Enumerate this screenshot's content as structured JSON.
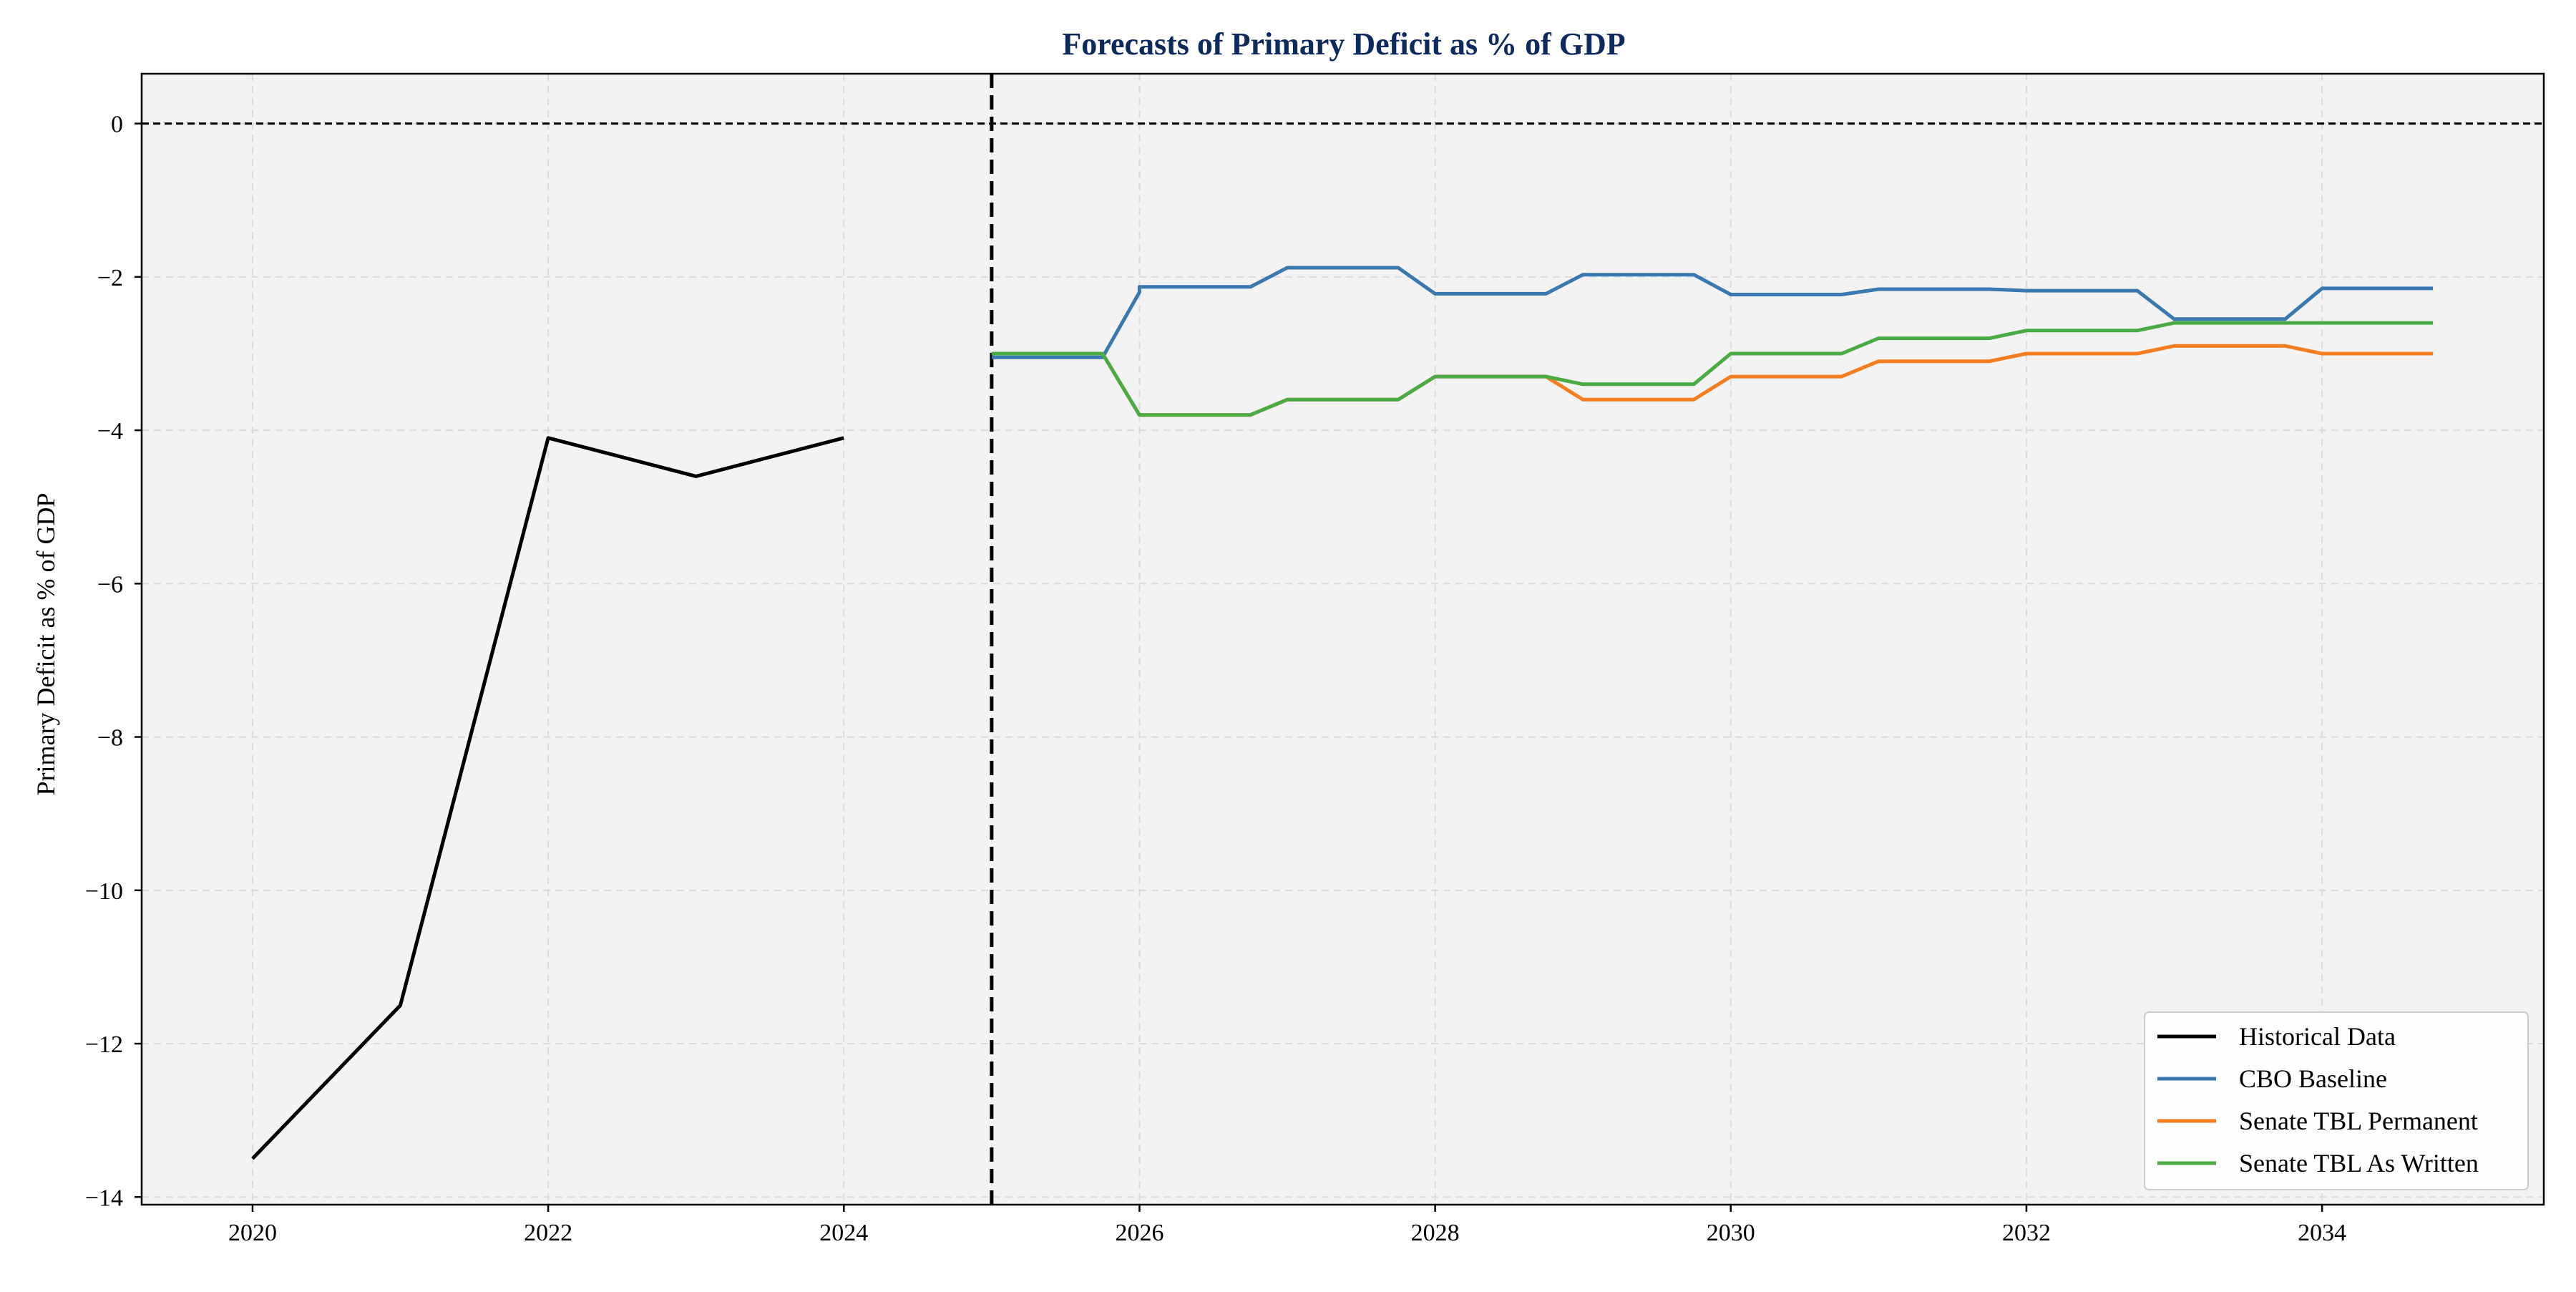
{
  "chart_data": {
    "type": "line",
    "title": "Forecasts of Primary Deficit as % of GDP",
    "xlabel": "",
    "ylabel": "Primary Deficit as % of GDP",
    "xlim": [
      2019.25,
      2035.5
    ],
    "ylim": [
      -14.1,
      0.65
    ],
    "x_ticks": [
      2020,
      2022,
      2024,
      2026,
      2028,
      2030,
      2032,
      2034
    ],
    "y_ticks": [
      0,
      -2,
      -4,
      -6,
      -8,
      -10,
      -12,
      -14
    ],
    "grid": true,
    "legend_position": "bottom-right",
    "reference_lines": [
      {
        "orientation": "horizontal",
        "value": 0,
        "style": "dashed",
        "color": "#000000"
      },
      {
        "orientation": "vertical",
        "value": 2025,
        "style": "dashed",
        "color": "#000000"
      }
    ],
    "series": [
      {
        "name": "Historical Data",
        "color": "#000000",
        "points": [
          [
            2020,
            -13.5
          ],
          [
            2021,
            -11.5
          ],
          [
            2022,
            -4.1
          ],
          [
            2023,
            -4.6
          ],
          [
            2024,
            -4.1
          ]
        ]
      },
      {
        "name": "CBO Baseline",
        "color": "#3a78b0",
        "points": [
          [
            2025,
            -3.05
          ],
          [
            2025.75,
            -3.05
          ],
          [
            2026,
            -2.2
          ],
          [
            2026,
            -2.13
          ],
          [
            2026.75,
            -2.13
          ],
          [
            2027,
            -1.88
          ],
          [
            2027.75,
            -1.88
          ],
          [
            2028,
            -2.22
          ],
          [
            2028.75,
            -2.22
          ],
          [
            2029,
            -1.97
          ],
          [
            2029.75,
            -1.97
          ],
          [
            2030,
            -2.23
          ],
          [
            2030.75,
            -2.23
          ],
          [
            2031,
            -2.16
          ],
          [
            2031.75,
            -2.16
          ],
          [
            2032,
            -2.18
          ],
          [
            2032.75,
            -2.18
          ],
          [
            2033,
            -2.55
          ],
          [
            2033.75,
            -2.55
          ],
          [
            2034,
            -2.15
          ],
          [
            2034.75,
            -2.15
          ]
        ]
      },
      {
        "name": "Senate TBL Permanent",
        "color": "#f47d1f",
        "points": [
          [
            2025,
            -3.0
          ],
          [
            2025.75,
            -3.0
          ],
          [
            2026,
            -3.8
          ],
          [
            2026.75,
            -3.8
          ],
          [
            2027,
            -3.6
          ],
          [
            2027.75,
            -3.6
          ],
          [
            2028,
            -3.3
          ],
          [
            2028.75,
            -3.3
          ],
          [
            2029,
            -3.6
          ],
          [
            2029.75,
            -3.6
          ],
          [
            2030,
            -3.3
          ],
          [
            2030.75,
            -3.3
          ],
          [
            2031,
            -3.1
          ],
          [
            2031.75,
            -3.1
          ],
          [
            2032,
            -3.0
          ],
          [
            2032.75,
            -3.0
          ],
          [
            2033,
            -2.9
          ],
          [
            2033.75,
            -2.9
          ],
          [
            2034,
            -3.0
          ],
          [
            2034.75,
            -3.0
          ]
        ]
      },
      {
        "name": "Senate TBL As Written",
        "color": "#4aab45",
        "points": [
          [
            2025,
            -3.0
          ],
          [
            2025.75,
            -3.0
          ],
          [
            2026,
            -3.8
          ],
          [
            2026.75,
            -3.8
          ],
          [
            2027,
            -3.6
          ],
          [
            2027.75,
            -3.6
          ],
          [
            2028,
            -3.3
          ],
          [
            2028.75,
            -3.3
          ],
          [
            2029,
            -3.4
          ],
          [
            2029.75,
            -3.4
          ],
          [
            2030,
            -3.0
          ],
          [
            2030.75,
            -3.0
          ],
          [
            2031,
            -2.8
          ],
          [
            2031.75,
            -2.8
          ],
          [
            2032,
            -2.7
          ],
          [
            2032.75,
            -2.7
          ],
          [
            2033,
            -2.6
          ],
          [
            2033.75,
            -2.6
          ],
          [
            2034,
            -2.6
          ],
          [
            2034.75,
            -2.6
          ]
        ]
      }
    ],
    "colors": {
      "plot_background": "#f3f3f3",
      "title": "#0d2a5f",
      "grid": "#dcdcdc"
    }
  }
}
